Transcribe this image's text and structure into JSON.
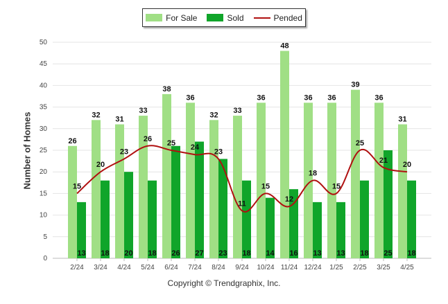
{
  "chart_data": {
    "type": "bar",
    "categories": [
      "2/24",
      "3/24",
      "4/24",
      "5/24",
      "6/24",
      "7/24",
      "8/24",
      "9/24",
      "10/24",
      "11/24",
      "12/24",
      "1/25",
      "2/25",
      "3/25",
      "4/25"
    ],
    "series": [
      {
        "name": "For Sale",
        "type": "bar",
        "color": "#a0df85",
        "values": [
          26,
          32,
          31,
          33,
          38,
          36,
          32,
          33,
          36,
          48,
          36,
          36,
          39,
          36,
          31
        ]
      },
      {
        "name": "Sold",
        "type": "bar",
        "color": "#10a52a",
        "values": [
          13,
          18,
          20,
          18,
          26,
          27,
          23,
          18,
          14,
          16,
          13,
          13,
          18,
          25,
          18
        ]
      },
      {
        "name": "Pended",
        "type": "line",
        "color": "#b01010",
        "values": [
          15,
          20,
          23,
          26,
          25,
          24,
          23,
          11,
          15,
          12,
          18,
          15,
          25,
          21,
          20
        ]
      }
    ],
    "ylabel": "Number of Homes",
    "xlabel": "",
    "ylim": [
      0,
      50
    ],
    "yticks": [
      0,
      5,
      10,
      15,
      20,
      25,
      30,
      35,
      40,
      45,
      50
    ],
    "legend_position": "top-center",
    "grid": true
  },
  "legend": {
    "for_sale": "For Sale",
    "sold": "Sold",
    "pended": "Pended"
  },
  "footer": {
    "copyright": "Copyright © Trendgraphix, Inc."
  }
}
